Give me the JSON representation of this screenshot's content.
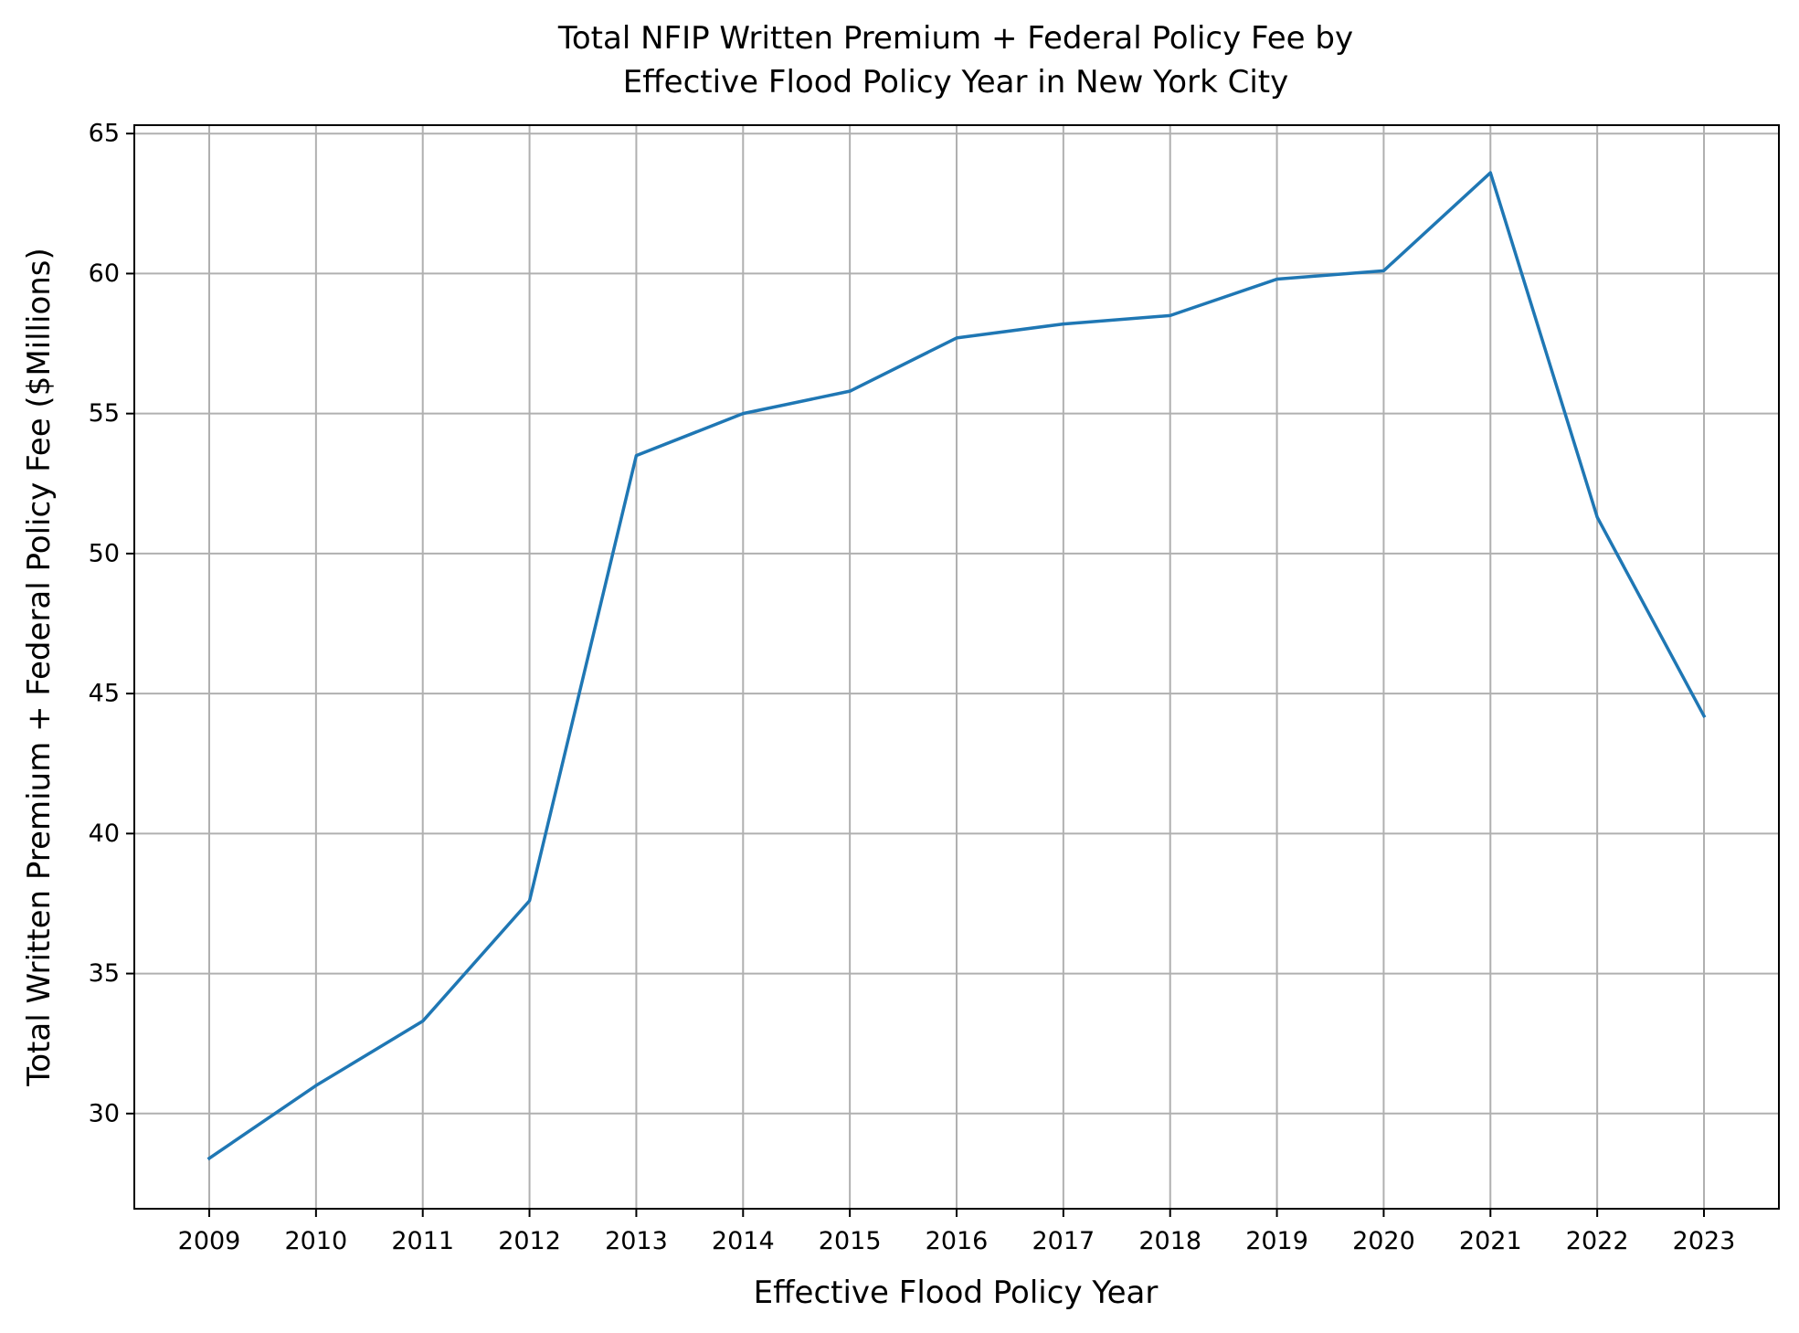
{
  "chart_data": {
    "type": "line",
    "title": [
      "Total NFIP Written Premium + Federal Policy Fee by",
      "Effective Flood Policy Year in New York City"
    ],
    "xlabel": "Effective Flood Policy Year",
    "ylabel": "Total Written Premium + Federal Policy Fee ($Millions)",
    "categories": [
      "2009",
      "2010",
      "2011",
      "2012",
      "2013",
      "2014",
      "2015",
      "2016",
      "2017",
      "2018",
      "2019",
      "2020",
      "2021",
      "2022",
      "2023"
    ],
    "series": [
      {
        "color": "#1f77b4",
        "values": [
          28.4,
          31.0,
          33.3,
          37.6,
          53.5,
          55.0,
          55.8,
          57.7,
          58.2,
          58.5,
          59.8,
          60.1,
          63.6,
          51.3,
          44.2
        ]
      }
    ],
    "yticks": [
      30,
      35,
      40,
      45,
      50,
      55,
      60,
      65
    ],
    "ylim": [
      26.6,
      65.3
    ],
    "grid": true,
    "legend": "none"
  }
}
